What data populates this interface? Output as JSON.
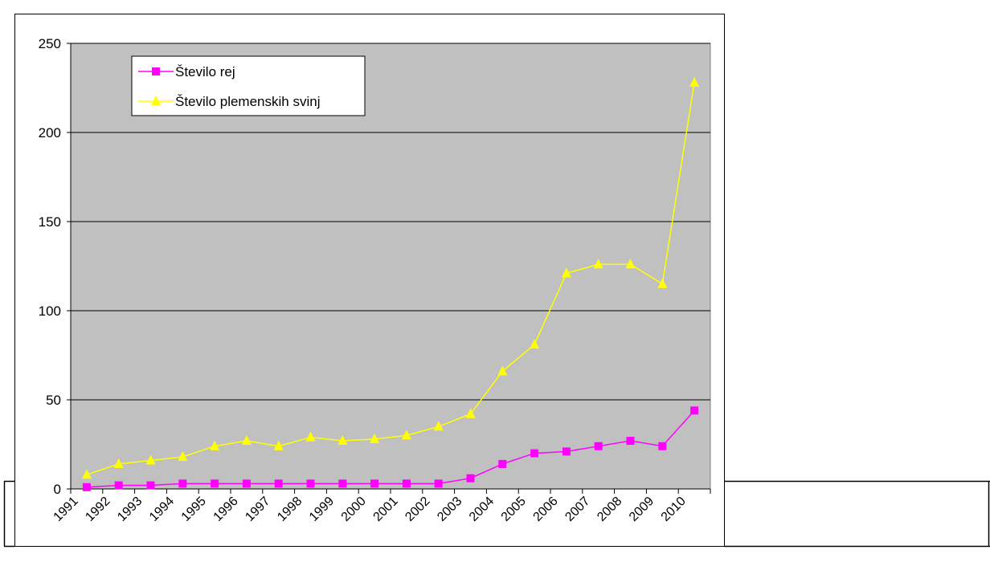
{
  "chart_data": {
    "type": "line",
    "x": [
      "1991",
      "1992",
      "1993",
      "1994",
      "1995",
      "1996",
      "1997",
      "1998",
      "1999",
      "2000",
      "2001",
      "2002",
      "2003",
      "2004",
      "2005",
      "2006",
      "2007",
      "2008",
      "2009",
      "2010"
    ],
    "series": [
      {
        "name": "Število rej",
        "color": "#ff00ff",
        "marker": "square",
        "values": [
          1,
          2,
          2,
          3,
          3,
          3,
          3,
          3,
          3,
          3,
          3,
          3,
          6,
          14,
          20,
          21,
          24,
          27,
          24,
          44
        ]
      },
      {
        "name": "Število plemenskih svinj",
        "color": "#ffff00",
        "marker": "triangle",
        "values": [
          8,
          14,
          16,
          18,
          24,
          27,
          24,
          29,
          27,
          28,
          30,
          35,
          42,
          66,
          81,
          121,
          126,
          126,
          115,
          228
        ]
      }
    ],
    "ylim": [
      0,
      250
    ],
    "yticks": [
      0,
      50,
      100,
      150,
      200,
      250
    ],
    "grid": true,
    "legend_position": "top-left",
    "plot_background": "#c0c0c0",
    "title": "",
    "xlabel": "",
    "ylabel": ""
  }
}
